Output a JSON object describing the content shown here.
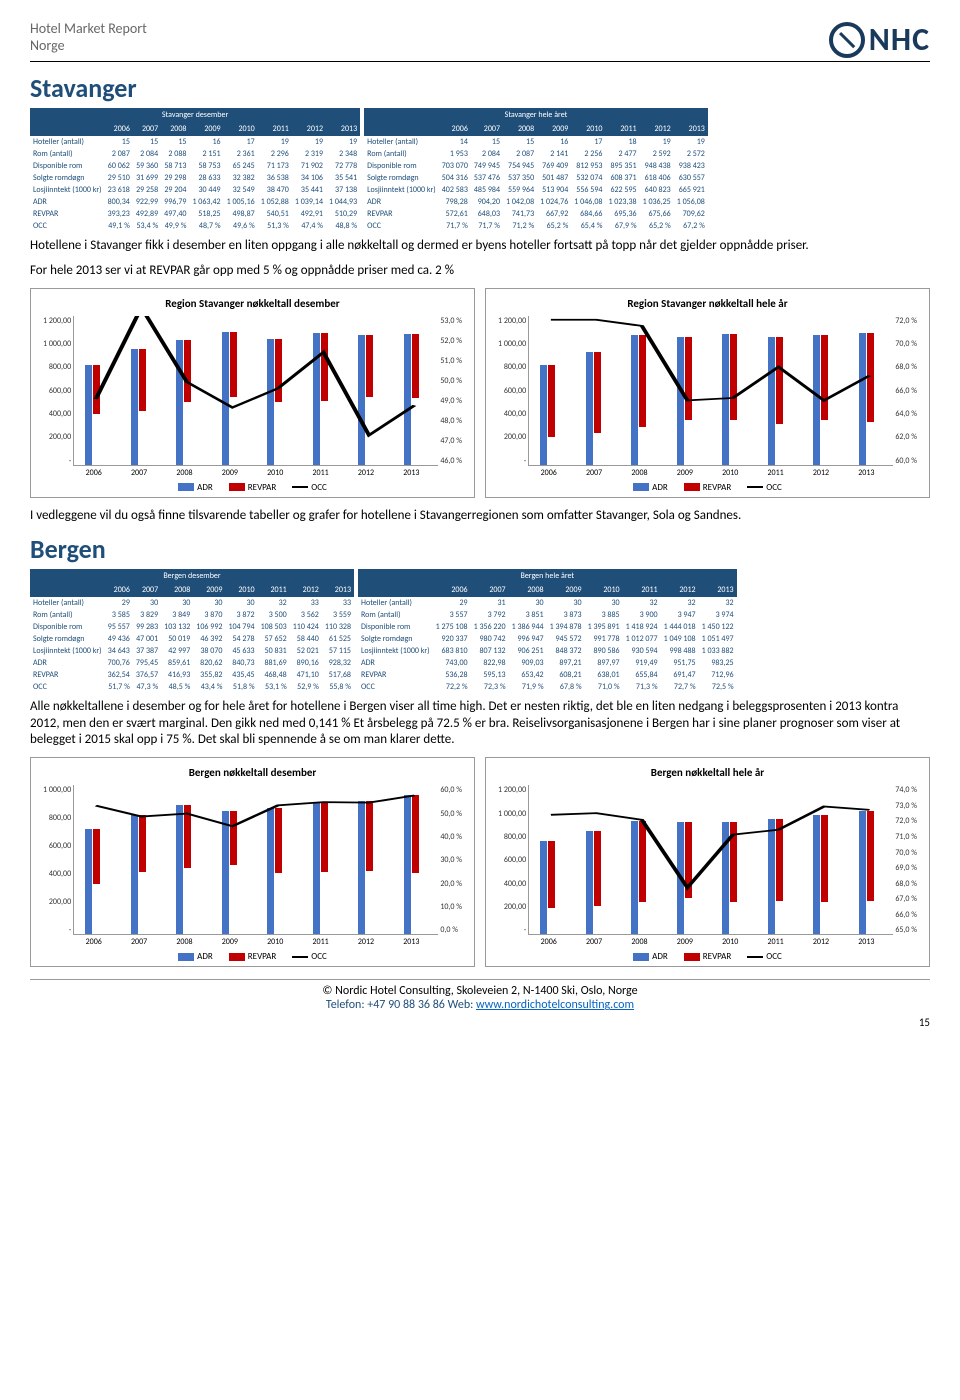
{
  "header": {
    "title": "Hotel Market Report",
    "subtitle": "Norge",
    "logo_text": "NHC"
  },
  "stavanger": {
    "title": "Stavanger",
    "table_dec": {
      "caption": "Stavanger desember",
      "years": [
        "2006",
        "2007",
        "2008",
        "2009",
        "2010",
        "2011",
        "2012",
        "2013"
      ],
      "rows": [
        {
          "label": "Hoteller (antall)",
          "vals": [
            "15",
            "15",
            "15",
            "16",
            "17",
            "19",
            "19",
            "19"
          ]
        },
        {
          "label": "Rom (antall)",
          "vals": [
            "2 087",
            "2 084",
            "2 088",
            "2 151",
            "2 361",
            "2 296",
            "2 319",
            "2 348"
          ]
        },
        {
          "label": "Disponible rom",
          "vals": [
            "60 062",
            "59 360",
            "58 713",
            "58 753",
            "65 245",
            "71 173",
            "71 902",
            "72 778"
          ]
        },
        {
          "label": "Solgte romdøgn",
          "vals": [
            "29 510",
            "31 699",
            "29 298",
            "28 633",
            "32 382",
            "36 538",
            "34 106",
            "35 541"
          ]
        },
        {
          "label": "Losjiinntekt (1000 kr)",
          "vals": [
            "23 618",
            "29 258",
            "29 204",
            "30 449",
            "32 549",
            "38 470",
            "35 441",
            "37 138"
          ]
        },
        {
          "label": "ADR",
          "vals": [
            "800,34",
            "922,99",
            "996,79",
            "1 063,42",
            "1 005,16",
            "1 052,88",
            "1 039,14",
            "1 044,93"
          ]
        },
        {
          "label": "REVPAR",
          "vals": [
            "393,23",
            "492,89",
            "497,40",
            "518,25",
            "498,87",
            "540,51",
            "492,91",
            "510,29"
          ]
        },
        {
          "label": "OCC",
          "vals": [
            "49,1 %",
            "53,4 %",
            "49,9 %",
            "48,7 %",
            "49,6 %",
            "51,3 %",
            "47,4 %",
            "48,8 %"
          ]
        }
      ]
    },
    "table_year": {
      "caption": "Stavanger hele året",
      "years": [
        "2006",
        "2007",
        "2008",
        "2009",
        "2010",
        "2011",
        "2012",
        "2013"
      ],
      "rows": [
        {
          "label": "Hoteller (antall)",
          "vals": [
            "14",
            "15",
            "15",
            "16",
            "17",
            "18",
            "19",
            "19"
          ]
        },
        {
          "label": "Rom (antall)",
          "vals": [
            "1 953",
            "2 084",
            "2 087",
            "2 141",
            "2 256",
            "2 477",
            "2 592",
            "2 572"
          ]
        },
        {
          "label": "Disponible rom",
          "vals": [
            "703 070",
            "749 945",
            "754 945",
            "769 409",
            "812 953",
            "895 351",
            "948 438",
            "938 423"
          ]
        },
        {
          "label": "Solgte romdøgn",
          "vals": [
            "504 316",
            "537 476",
            "537 350",
            "501 487",
            "532 074",
            "608 371",
            "618 406",
            "630 557"
          ]
        },
        {
          "label": "Losjiinntekt (1000 kr)",
          "vals": [
            "402 583",
            "485 984",
            "559 964",
            "513 904",
            "556 594",
            "622 595",
            "640 823",
            "665 921"
          ]
        },
        {
          "label": "ADR",
          "vals": [
            "798,28",
            "904,20",
            "1 042,08",
            "1 024,76",
            "1 046,08",
            "1 023,38",
            "1 036,25",
            "1 056,08"
          ]
        },
        {
          "label": "REVPAR",
          "vals": [
            "572,61",
            "648,03",
            "741,73",
            "667,92",
            "684,66",
            "695,36",
            "675,66",
            "709,62"
          ]
        },
        {
          "label": "OCC",
          "vals": [
            "71,7 %",
            "71,7 %",
            "71,2 %",
            "65,2 %",
            "65,4 %",
            "67,9 %",
            "65,2 %",
            "67,2 %"
          ]
        }
      ]
    },
    "para1": "Hotellene i Stavanger fikk i desember en liten oppgang i alle nøkkeltall og dermed er byens hoteller fortsatt på topp når det gjelder oppnådde priser.",
    "para2": "For hele 2013 ser vi at REVPAR går opp med 5 % og oppnådde priser med ca. 2 %",
    "chart_dec": {
      "title": "Region Stavanger nøkkeltall desember",
      "x": [
        "2006",
        "2007",
        "2008",
        "2009",
        "2010",
        "2011",
        "2012",
        "2013"
      ],
      "y_left": [
        "1 200,00",
        "1 000,00",
        "800,00",
        "600,00",
        "400,00",
        "200,00",
        "-"
      ],
      "y_right": [
        "53,0 %",
        "52,0 %",
        "51,0 %",
        "50,0 %",
        "49,0 %",
        "48,0 %",
        "47,0 %",
        "46,0 %"
      ],
      "adr": [
        800,
        923,
        997,
        1063,
        1005,
        1053,
        1039,
        1045
      ],
      "revpar": [
        393,
        493,
        497,
        518,
        499,
        541,
        493,
        510
      ],
      "occ": [
        49.1,
        53.4,
        49.9,
        48.7,
        49.6,
        51.3,
        47.4,
        48.8
      ],
      "y_max": 1200,
      "occ_min": 46,
      "occ_max": 53,
      "bar_colors": {
        "adr": "#4472c4",
        "revpar": "#c00000"
      },
      "line_color": "#000000"
    },
    "chart_year": {
      "title": "Region Stavanger nøkkeltall hele år",
      "x": [
        "2006",
        "2007",
        "2008",
        "2009",
        "2010",
        "2011",
        "2012",
        "2013"
      ],
      "y_left": [
        "1 200,00",
        "1 000,00",
        "800,00",
        "600,00",
        "400,00",
        "200,00",
        "-"
      ],
      "y_right": [
        "72,0 %",
        "70,0 %",
        "68,0 %",
        "66,0 %",
        "64,0 %",
        "62,0 %",
        "60,0 %"
      ],
      "adr": [
        798,
        904,
        1042,
        1025,
        1046,
        1023,
        1036,
        1056
      ],
      "revpar": [
        573,
        648,
        742,
        668,
        685,
        695,
        676,
        710
      ],
      "occ": [
        71.7,
        71.7,
        71.2,
        65.2,
        65.4,
        67.9,
        65.2,
        67.2
      ],
      "y_max": 1200,
      "occ_min": 60,
      "occ_max": 72,
      "bar_colors": {
        "adr": "#4472c4",
        "revpar": "#c00000"
      },
      "line_color": "#000000"
    },
    "para3": "I vedleggene vil du også finne tilsvarende tabeller og grafer for hotellene i Stavangerregionen som omfatter Stavanger, Sola og Sandnes."
  },
  "bergen": {
    "title": "Bergen",
    "table_dec": {
      "caption": "Bergen desember",
      "years": [
        "2006",
        "2007",
        "2008",
        "2009",
        "2010",
        "2011",
        "2012",
        "2013"
      ],
      "rows": [
        {
          "label": "Hoteller (antall)",
          "vals": [
            "29",
            "30",
            "30",
            "30",
            "30",
            "32",
            "33",
            "33"
          ]
        },
        {
          "label": "Rom (antall)",
          "vals": [
            "3 585",
            "3 829",
            "3 849",
            "3 870",
            "3 872",
            "3 500",
            "3 562",
            "3 559"
          ]
        },
        {
          "label": "Disponible rom",
          "vals": [
            "95 557",
            "99 283",
            "103 132",
            "106 992",
            "104 794",
            "108 503",
            "110 424",
            "110 328"
          ]
        },
        {
          "label": "Solgte romdøgn",
          "vals": [
            "49 436",
            "47 001",
            "50 019",
            "46 392",
            "54 278",
            "57 652",
            "58 440",
            "61 525"
          ]
        },
        {
          "label": "Losjiinntekt (1000 kr)",
          "vals": [
            "34 643",
            "37 387",
            "42 997",
            "38 070",
            "45 633",
            "50 831",
            "52 021",
            "57 115"
          ]
        },
        {
          "label": "ADR",
          "vals": [
            "700,76",
            "795,45",
            "859,61",
            "820,62",
            "840,73",
            "881,69",
            "890,16",
            "928,32"
          ]
        },
        {
          "label": "REVPAR",
          "vals": [
            "362,54",
            "376,57",
            "416,93",
            "355,82",
            "435,45",
            "468,48",
            "471,10",
            "517,68"
          ]
        },
        {
          "label": "OCC",
          "vals": [
            "51,7 %",
            "47,3 %",
            "48,5 %",
            "43,4 %",
            "51,8 %",
            "53,1 %",
            "52,9 %",
            "55,8 %"
          ]
        }
      ]
    },
    "table_year": {
      "caption": "Bergen hele året",
      "years": [
        "2006",
        "2007",
        "2008",
        "2009",
        "2010",
        "2011",
        "2012",
        "2013"
      ],
      "rows": [
        {
          "label": "Hoteller (antall)",
          "vals": [
            "29",
            "31",
            "30",
            "30",
            "30",
            "32",
            "32",
            "32"
          ]
        },
        {
          "label": "Rom (antall)",
          "vals": [
            "3 557",
            "3 792",
            "3 851",
            "3 873",
            "3 885",
            "3 900",
            "3 947",
            "3 974"
          ]
        },
        {
          "label": "Disponible rom",
          "vals": [
            "1 275 108",
            "1 356 220",
            "1 386 944",
            "1 394 878",
            "1 395 891",
            "1 418 924",
            "1 444 018",
            "1 450 122"
          ]
        },
        {
          "label": "Solgte romdøgn",
          "vals": [
            "920 337",
            "980 742",
            "996 947",
            "945 572",
            "991 778",
            "1 012 077",
            "1 049 108",
            "1 051 497"
          ]
        },
        {
          "label": "Losjiinntekt (1000 kr)",
          "vals": [
            "683 810",
            "807 132",
            "906 251",
            "848 372",
            "890 586",
            "930 594",
            "998 488",
            "1 033 882"
          ]
        },
        {
          "label": "ADR",
          "vals": [
            "743,00",
            "822,98",
            "909,03",
            "897,21",
            "897,97",
            "919,49",
            "951,75",
            "983,25"
          ]
        },
        {
          "label": "REVPAR",
          "vals": [
            "536,28",
            "595,13",
            "653,42",
            "608,21",
            "638,01",
            "655,84",
            "691,47",
            "712,96"
          ]
        },
        {
          "label": "OCC",
          "vals": [
            "72,2 %",
            "72,3 %",
            "71,9 %",
            "67,8 %",
            "71,0 %",
            "71,3 %",
            "72,7 %",
            "72,5 %"
          ]
        }
      ]
    },
    "para1": "Alle nøkkeltallene i desember og for hele året for hotellene i Bergen viser all time high.  Det er nesten riktig, det ble en liten nedgang i beleggsprosenten i 2013 kontra 2012, men den er svært marginal. Den gikk ned med 0,141 % Et årsbelegg på 72.5 % er bra. Reiselivsorganisasjonene i Bergen har i sine planer prognoser som viser at belegget i 2015 skal opp i 75 %. Det skal bli spennende å se om man klarer dette.",
    "chart_dec": {
      "title": "Bergen nøkkeltall desember",
      "x": [
        "2006",
        "2007",
        "2008",
        "2009",
        "2010",
        "2011",
        "2012",
        "2013"
      ],
      "y_left": [
        "1 000,00",
        "800,00",
        "600,00",
        "400,00",
        "200,00",
        "-"
      ],
      "y_right": [
        "60,0 %",
        "50,0 %",
        "40,0 %",
        "30,0 %",
        "20,0 %",
        "10,0 %",
        "0,0 %"
      ],
      "adr": [
        701,
        795,
        860,
        821,
        841,
        882,
        890,
        928
      ],
      "revpar": [
        363,
        377,
        417,
        356,
        435,
        468,
        471,
        518
      ],
      "occ": [
        51.7,
        47.3,
        48.5,
        43.4,
        51.8,
        53.1,
        52.9,
        55.8
      ],
      "y_max": 1000,
      "occ_min": 0,
      "occ_max": 60,
      "bar_colors": {
        "adr": "#4472c4",
        "revpar": "#c00000"
      },
      "line_color": "#000000"
    },
    "chart_year": {
      "title": "Bergen nøkkeltall hele år",
      "x": [
        "2006",
        "2007",
        "2008",
        "2009",
        "2010",
        "2011",
        "2012",
        "2013"
      ],
      "y_left": [
        "1 200,00",
        "1 000,00",
        "800,00",
        "600,00",
        "400,00",
        "200,00",
        "-"
      ],
      "y_right": [
        "74,0 %",
        "73,0 %",
        "72,0 %",
        "71,0 %",
        "70,0 %",
        "69,0 %",
        "68,0 %",
        "67,0 %",
        "66,0 %",
        "65,0 %"
      ],
      "adr": [
        743,
        823,
        909,
        897,
        898,
        919,
        952,
        983
      ],
      "revpar": [
        536,
        595,
        653,
        608,
        638,
        656,
        691,
        713
      ],
      "occ": [
        72.2,
        72.3,
        71.9,
        67.8,
        71.0,
        71.3,
        72.7,
        72.5
      ],
      "y_max": 1200,
      "occ_min": 65,
      "occ_max": 74,
      "bar_colors": {
        "adr": "#4472c4",
        "revpar": "#c00000"
      },
      "line_color": "#000000"
    }
  },
  "legend": {
    "adr": "ADR",
    "revpar": "REVPAR",
    "occ": "OCC"
  },
  "footer": {
    "addr": "© Nordic Hotel Consulting, Skoleveien 2, N-1400 Ski, Oslo, Norge",
    "tel": "Telefon: +47 90 88 36 86 Web: ",
    "url": "www.nordichotelconsulting.com",
    "page": "15"
  }
}
